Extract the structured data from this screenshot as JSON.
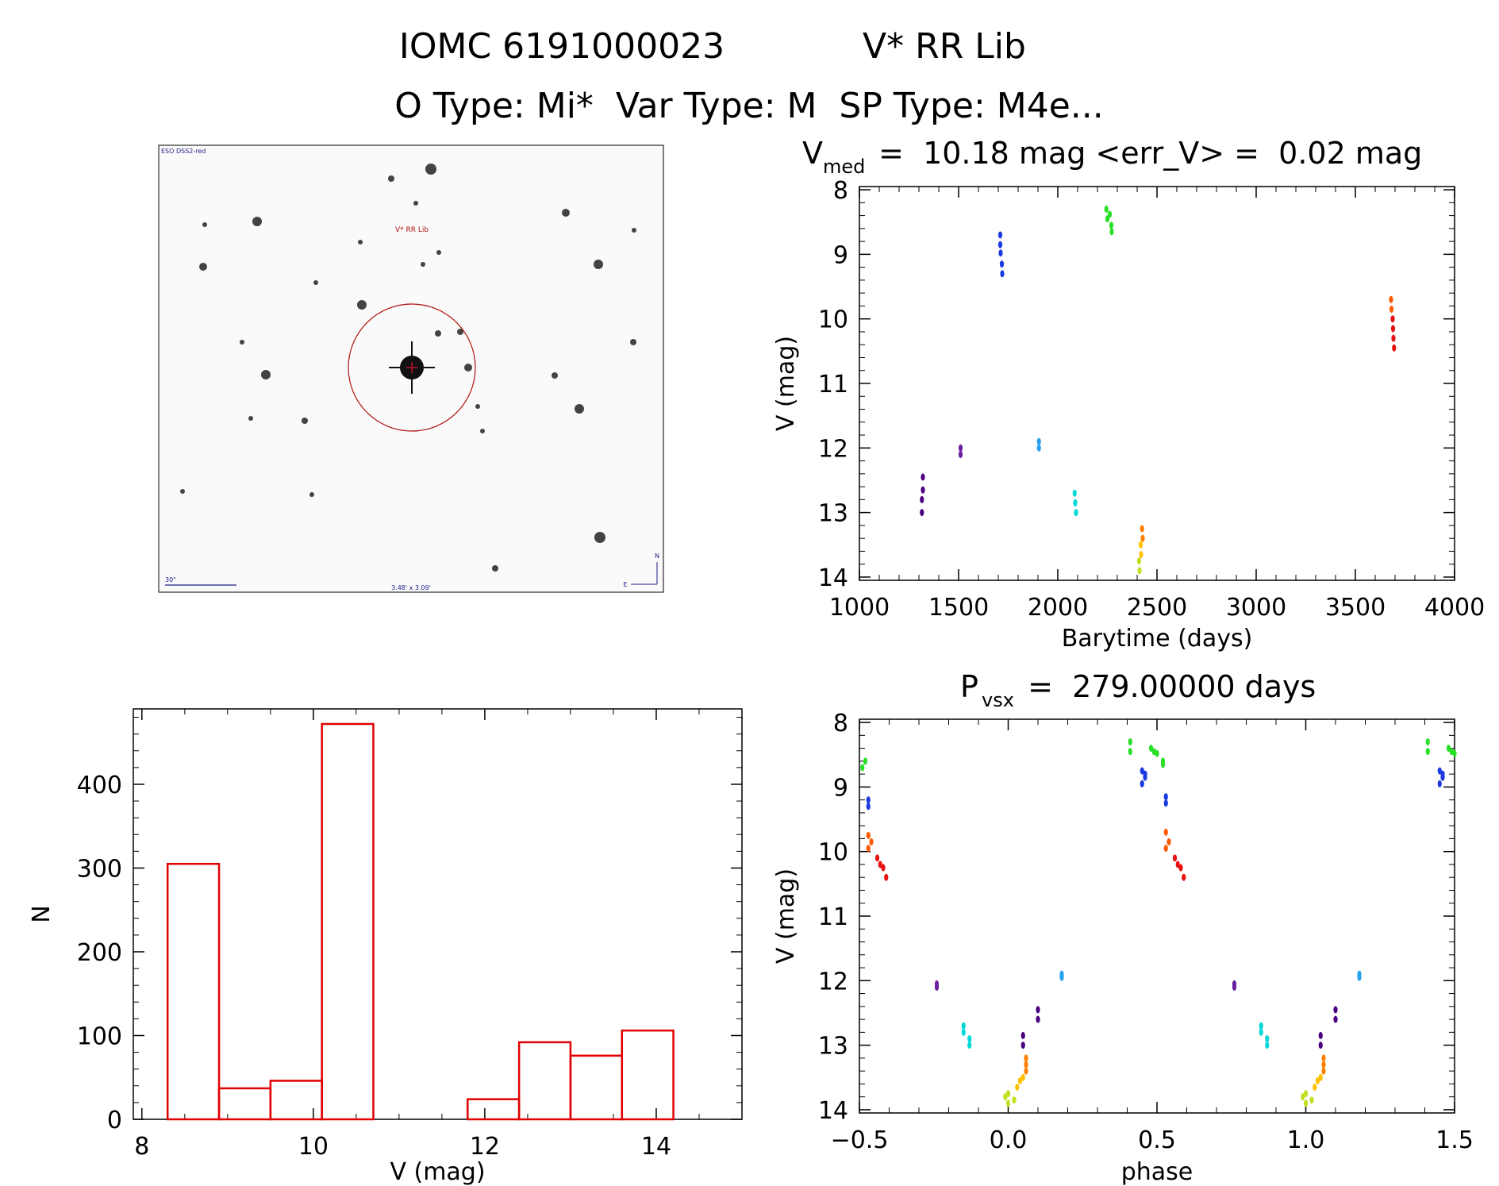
{
  "header": {
    "line1_left": "IOMC 6191000023",
    "line1_right": "V* RR Lib",
    "line2": "O Type: Mi*  Var Type: M  SP Type: M4e..."
  },
  "finder": {
    "survey": "ESO DSS2-red",
    "target_label": "V* RR Lib",
    "scale_label": "30\"",
    "fov_label": "3.48' x 3.09'",
    "north": "N",
    "east": "E"
  },
  "chart_data": [
    {
      "id": "lightcurve",
      "type": "scatter",
      "title_main": "V",
      "title_sub": "med",
      "title_rest": " =  10.18 mag <err_V> =  0.02 mag",
      "xlabel": "Barytime (days)",
      "ylabel": "V (mag)",
      "xlim": [
        1000,
        4000
      ],
      "ylim": [
        14.05,
        7.95
      ],
      "y_inverted": true,
      "xticks": [
        "1000",
        "1500",
        "2000",
        "2500",
        "3000",
        "3500",
        "4000"
      ],
      "yticks": [
        "8",
        "9",
        "10",
        "11",
        "12",
        "13",
        "14"
      ],
      "series": [
        {
          "color": "#4b0082",
          "points": [
            [
              1320,
              12.45
            ],
            [
              1320,
              12.65
            ],
            [
              1315,
              12.8
            ],
            [
              1315,
              13.0
            ]
          ]
        },
        {
          "color": "#6a1fa0",
          "points": [
            [
              1510,
              12.0
            ],
            [
              1510,
              12.1
            ]
          ]
        },
        {
          "color": "#1a3adf",
          "points": [
            [
              1710,
              8.7
            ],
            [
              1710,
              8.85
            ],
            [
              1712,
              8.98
            ],
            [
              1718,
              9.15
            ],
            [
              1720,
              9.3
            ]
          ]
        },
        {
          "color": "#28a0f0",
          "points": [
            [
              1905,
              11.9
            ],
            [
              1905,
              12.0
            ]
          ]
        },
        {
          "color": "#00d8d8",
          "points": [
            [
              2085,
              12.7
            ],
            [
              2088,
              12.85
            ],
            [
              2092,
              13.0
            ]
          ]
        },
        {
          "color": "#28e028",
          "points": [
            [
              2245,
              8.3
            ],
            [
              2250,
              8.45
            ],
            [
              2262,
              8.38
            ],
            [
              2270,
              8.55
            ],
            [
              2272,
              8.65
            ]
          ]
        },
        {
          "color": "#c0e020",
          "points": [
            [
              2410,
              13.75
            ],
            [
              2412,
              13.9
            ]
          ]
        },
        {
          "color": "#ffc000",
          "points": [
            [
              2418,
              13.5
            ],
            [
              2420,
              13.65
            ]
          ]
        },
        {
          "color": "#ff8000",
          "points": [
            [
              2425,
              13.25
            ],
            [
              2428,
              13.4
            ]
          ]
        },
        {
          "color": "#ff5a00",
          "points": [
            [
              3680,
              9.7
            ],
            [
              3682,
              9.85
            ]
          ]
        },
        {
          "color": "#e81010",
          "points": [
            [
              3688,
              10.0
            ],
            [
              3690,
              10.15
            ],
            [
              3692,
              10.3
            ],
            [
              3695,
              10.45
            ]
          ]
        }
      ]
    },
    {
      "id": "histogram",
      "type": "bar",
      "xlabel": "V (mag)",
      "ylabel": "N",
      "xlim": [
        7.9,
        15.0
      ],
      "ylim": [
        0,
        490
      ],
      "xticks": [
        "8",
        "10",
        "12",
        "14"
      ],
      "yticks": [
        "0",
        "100",
        "200",
        "300",
        "400"
      ],
      "bin_edges": [
        8.3,
        8.9,
        9.5,
        10.1,
        10.7,
        11.3,
        11.8,
        12.4,
        13.0,
        13.6,
        14.2
      ],
      "values": [
        305,
        37,
        46,
        472,
        0,
        0,
        24,
        92,
        76,
        106
      ],
      "color": "#e00000"
    },
    {
      "id": "phased",
      "type": "scatter",
      "title_main": "P",
      "title_sub": "vsx",
      "title_rest": " =  279.00000 days",
      "xlabel": "phase",
      "ylabel": "V (mag)",
      "xlim": [
        -0.5,
        1.5
      ],
      "ylim": [
        14.05,
        7.95
      ],
      "y_inverted": true,
      "xticks": [
        "−0.5",
        "0.0",
        "0.5",
        "1.0",
        "1.5"
      ],
      "yticks": [
        "8",
        "9",
        "10",
        "11",
        "12",
        "13",
        "14"
      ],
      "series": [
        {
          "color": "#28e028",
          "points": [
            [
              -0.48,
              8.6
            ],
            [
              -0.49,
              8.7
            ],
            [
              0.41,
              8.3
            ],
            [
              0.41,
              8.45
            ],
            [
              0.48,
              8.4
            ],
            [
              0.49,
              8.45
            ],
            [
              0.5,
              8.48
            ],
            [
              0.52,
              8.6
            ],
            [
              0.52,
              8.65
            ],
            [
              1.41,
              8.3
            ],
            [
              1.41,
              8.45
            ],
            [
              1.48,
              8.4
            ],
            [
              1.49,
              8.45
            ],
            [
              1.5,
              8.48
            ]
          ]
        },
        {
          "color": "#1a3adf",
          "points": [
            [
              -0.47,
              9.2
            ],
            [
              -0.47,
              9.3
            ],
            [
              0.45,
              8.75
            ],
            [
              0.46,
              8.8
            ],
            [
              0.46,
              8.85
            ],
            [
              0.45,
              8.95
            ],
            [
              0.53,
              9.15
            ],
            [
              0.53,
              9.25
            ],
            [
              1.45,
              8.75
            ],
            [
              1.46,
              8.8
            ],
            [
              1.46,
              8.85
            ],
            [
              1.45,
              8.95
            ]
          ]
        },
        {
          "color": "#ff5a00",
          "points": [
            [
              -0.47,
              9.75
            ],
            [
              -0.46,
              9.85
            ],
            [
              -0.47,
              9.95
            ],
            [
              0.53,
              9.7
            ],
            [
              0.54,
              9.85
            ],
            [
              0.53,
              9.95
            ]
          ]
        },
        {
          "color": "#e81010",
          "points": [
            [
              -0.44,
              10.1
            ],
            [
              -0.43,
              10.2
            ],
            [
              -0.42,
              10.25
            ],
            [
              -0.41,
              10.4
            ],
            [
              0.56,
              10.1
            ],
            [
              0.57,
              10.2
            ],
            [
              0.58,
              10.25
            ],
            [
              0.59,
              10.4
            ]
          ]
        },
        {
          "color": "#6a1fa0",
          "points": [
            [
              -0.24,
              12.05
            ],
            [
              -0.24,
              12.1
            ],
            [
              0.76,
              12.05
            ],
            [
              0.76,
              12.1
            ]
          ]
        },
        {
          "color": "#28a0f0",
          "points": [
            [
              0.18,
              11.9
            ],
            [
              0.18,
              11.95
            ],
            [
              1.18,
              11.9
            ],
            [
              1.18,
              11.95
            ]
          ]
        },
        {
          "color": "#00d8d8",
          "points": [
            [
              -0.15,
              12.7
            ],
            [
              -0.15,
              12.8
            ],
            [
              -0.13,
              12.9
            ],
            [
              -0.13,
              13.0
            ],
            [
              0.85,
              12.7
            ],
            [
              0.85,
              12.8
            ],
            [
              0.87,
              12.9
            ],
            [
              0.87,
              13.0
            ]
          ]
        },
        {
          "color": "#4b0082",
          "points": [
            [
              0.1,
              12.45
            ],
            [
              0.1,
              12.6
            ],
            [
              0.05,
              12.85
            ],
            [
              0.05,
              13.0
            ],
            [
              1.1,
              12.45
            ],
            [
              1.1,
              12.6
            ],
            [
              1.05,
              12.85
            ],
            [
              1.05,
              13.0
            ]
          ]
        },
        {
          "color": "#c0e020",
          "points": [
            [
              0.0,
              13.75
            ],
            [
              -0.01,
              13.8
            ],
            [
              0.0,
              13.9
            ],
            [
              0.02,
              13.85
            ],
            [
              1.0,
              13.75
            ],
            [
              0.99,
              13.8
            ],
            [
              1.0,
              13.9
            ],
            [
              1.02,
              13.85
            ]
          ]
        },
        {
          "color": "#ffc000",
          "points": [
            [
              0.03,
              13.65
            ],
            [
              0.04,
              13.55
            ],
            [
              0.05,
              13.5
            ],
            [
              1.03,
              13.65
            ],
            [
              1.04,
              13.55
            ],
            [
              1.05,
              13.5
            ]
          ]
        },
        {
          "color": "#ff8000",
          "points": [
            [
              0.06,
              13.3
            ],
            [
              0.06,
              13.4
            ],
            [
              0.06,
              13.2
            ],
            [
              1.06,
              13.3
            ],
            [
              1.06,
              13.4
            ],
            [
              1.06,
              13.2
            ]
          ]
        }
      ]
    }
  ]
}
